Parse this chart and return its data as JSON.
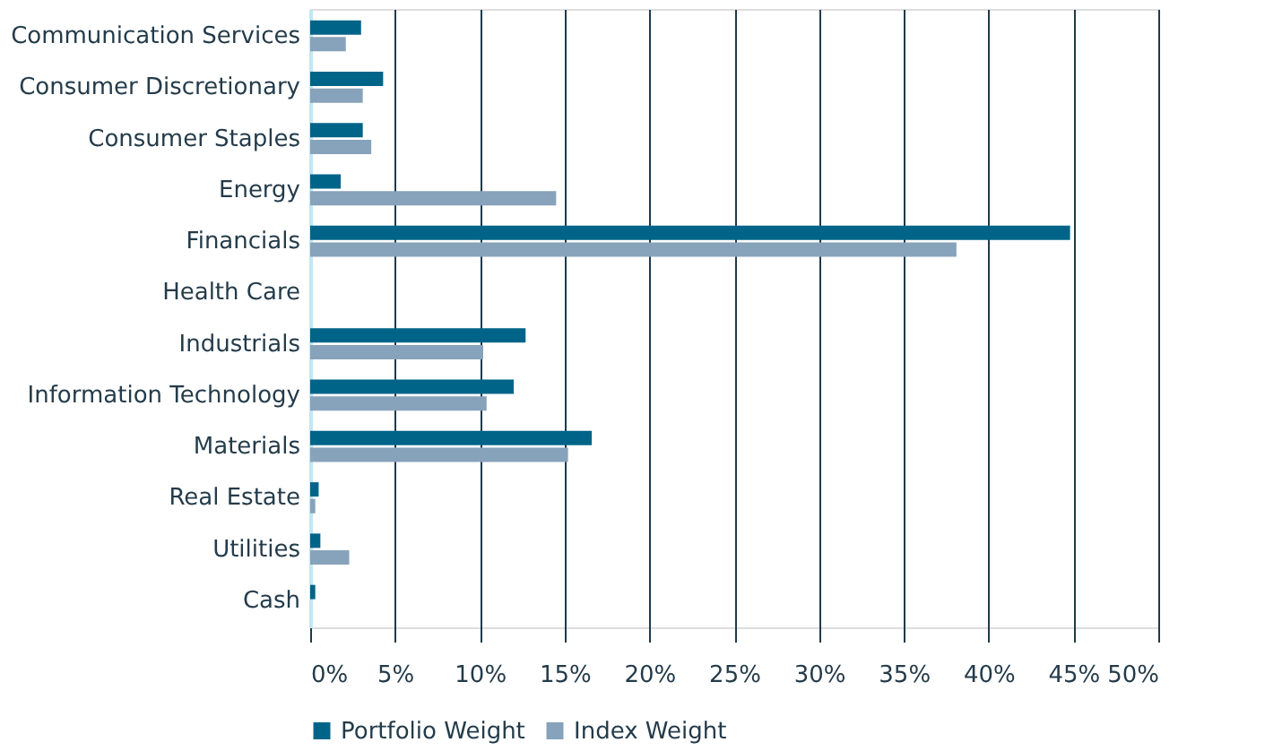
{
  "chart_data": {
    "type": "bar",
    "orientation": "horizontal",
    "categories": [
      "Communication Services",
      "Consumer Discretionary",
      "Consumer Staples",
      "Energy",
      "Financials",
      "Health Care",
      "Industrials",
      "Information Technology",
      "Materials",
      "Real Estate",
      "Utilities",
      "Cash"
    ],
    "series": [
      {
        "name": "Portfolio Weight",
        "color": "#006489",
        "values": [
          3.0,
          4.3,
          3.1,
          1.8,
          44.8,
          null,
          12.7,
          12.0,
          16.6,
          0.5,
          0.6,
          0.3
        ]
      },
      {
        "name": "Index Weight",
        "color": "#87a2bb",
        "values": [
          2.1,
          3.1,
          3.6,
          14.5,
          38.1,
          null,
          10.2,
          10.4,
          15.2,
          0.3,
          2.3,
          null
        ]
      }
    ],
    "xlim": [
      0,
      50
    ],
    "xticks": [
      {
        "value": 0,
        "label": "0%"
      },
      {
        "value": 5,
        "label": "5%"
      },
      {
        "value": 10,
        "label": "10%"
      },
      {
        "value": 15,
        "label": "15%"
      },
      {
        "value": 20,
        "label": "20%"
      },
      {
        "value": 25,
        "label": "25%"
      },
      {
        "value": 30,
        "label": "30%"
      },
      {
        "value": 35,
        "label": "35%"
      },
      {
        "value": 40,
        "label": "40%"
      },
      {
        "value": 45,
        "label": "45%"
      },
      {
        "value": 50,
        "label": "50%"
      }
    ],
    "grid": "x",
    "legend": "bottom"
  }
}
